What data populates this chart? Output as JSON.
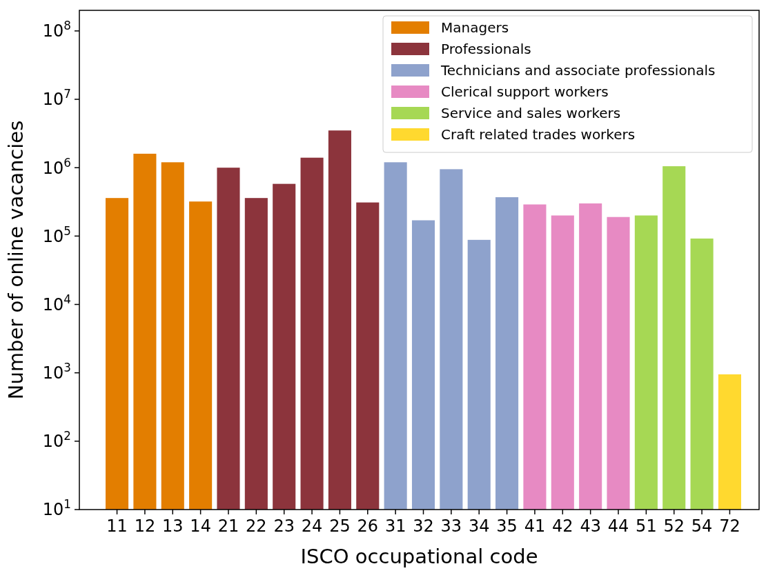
{
  "chart_data": {
    "type": "bar",
    "xlabel": "ISCO occupational code",
    "ylabel": "Number of online vacancies",
    "categories": [
      "11",
      "12",
      "13",
      "14",
      "21",
      "22",
      "23",
      "24",
      "25",
      "26",
      "31",
      "32",
      "33",
      "34",
      "35",
      "41",
      "42",
      "43",
      "44",
      "51",
      "52",
      "54",
      "72"
    ],
    "series": [
      {
        "name": "Managers",
        "color": "#e37e00",
        "values": [
          360000,
          1600000,
          1200000,
          320000,
          null,
          null,
          null,
          null,
          null,
          null,
          null,
          null,
          null,
          null,
          null,
          null,
          null,
          null,
          null,
          null,
          null,
          null,
          null
        ]
      },
      {
        "name": "Professionals",
        "color": "#8c343c",
        "values": [
          null,
          null,
          null,
          null,
          1000000,
          360000,
          580000,
          1400000,
          3500000,
          310000,
          null,
          null,
          null,
          null,
          null,
          null,
          null,
          null,
          null,
          null,
          null,
          null,
          null
        ]
      },
      {
        "name": "Technicians and associate professionals",
        "color": "#8ea2cc",
        "values": [
          null,
          null,
          null,
          null,
          null,
          null,
          null,
          null,
          null,
          null,
          1200000,
          170000,
          950000,
          88000,
          370000,
          null,
          null,
          null,
          null,
          null,
          null,
          null,
          null
        ]
      },
      {
        "name": "Clerical support workers",
        "color": "#e78ac3",
        "values": [
          null,
          null,
          null,
          null,
          null,
          null,
          null,
          null,
          null,
          null,
          null,
          null,
          null,
          null,
          null,
          290000,
          200000,
          300000,
          190000,
          null,
          null,
          null,
          null
        ]
      },
      {
        "name": "Service and sales workers",
        "color": "#a6d854",
        "values": [
          null,
          null,
          null,
          null,
          null,
          null,
          null,
          null,
          null,
          null,
          null,
          null,
          null,
          null,
          null,
          null,
          null,
          null,
          null,
          200000,
          1050000,
          92000,
          null
        ]
      },
      {
        "name": "Craft related trades workers",
        "color": "#ffd92f",
        "values": [
          null,
          null,
          null,
          null,
          null,
          null,
          null,
          null,
          null,
          null,
          null,
          null,
          null,
          null,
          null,
          null,
          null,
          null,
          null,
          null,
          null,
          null,
          950
        ]
      }
    ],
    "log": true,
    "ylim": [
      10,
      200000000
    ],
    "yticks": [
      {
        "value": 10,
        "label": "10$^{1}$"
      },
      {
        "value": 100,
        "label": "10$^{2}$"
      },
      {
        "value": 1000,
        "label": "10$^{3}$"
      },
      {
        "value": 10000,
        "label": "10$^{4}$"
      },
      {
        "value": 100000,
        "label": "10$^{5}$"
      },
      {
        "value": 1000000,
        "label": "10$^{6}$"
      },
      {
        "value": 10000000,
        "label": "10$^{7}$"
      },
      {
        "value": 100000000,
        "label": "10$^{8}$"
      }
    ],
    "grid": false,
    "legend": "top right"
  }
}
